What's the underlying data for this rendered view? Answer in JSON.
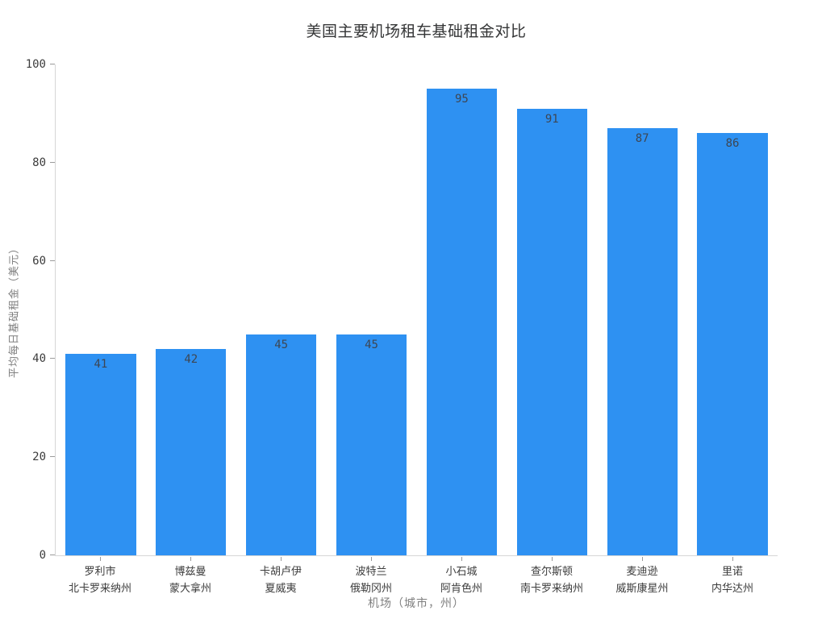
{
  "chart_data": {
    "type": "bar",
    "title": "美国主要机场租车基础租金对比",
    "xlabel": "机场（城市，州）",
    "ylabel": "平均每日基础租金（美元）",
    "categories": [
      {
        "city": "罗利市",
        "state": "北卡罗来纳州"
      },
      {
        "city": "博兹曼",
        "state": "蒙大拿州"
      },
      {
        "city": "卡胡卢伊",
        "state": "夏威夷"
      },
      {
        "city": "波特兰",
        "state": "俄勒冈州"
      },
      {
        "city": "小石城",
        "state": "阿肯色州"
      },
      {
        "city": "查尔斯顿",
        "state": "南卡罗来纳州"
      },
      {
        "city": "麦迪逊",
        "state": "威斯康星州"
      },
      {
        "city": "里诺",
        "state": "内华达州"
      }
    ],
    "values": [
      41,
      42,
      45,
      45,
      95,
      91,
      87,
      86
    ],
    "ylim": [
      0,
      100
    ],
    "yticks": [
      0,
      20,
      40,
      60,
      80,
      100
    ],
    "grid": false,
    "legend": "none",
    "bar_label_position": "inside-top",
    "colors": {
      "bar": "#2E91F2",
      "bar_label": "#3D4653",
      "axis_line": "#D6D6D6",
      "tick_mark": "#9A9A9A",
      "tick_label": "#3C3C3C",
      "axis_title": "#7F7F7F",
      "title": "#353637",
      "background": "#FFFFFF"
    }
  }
}
